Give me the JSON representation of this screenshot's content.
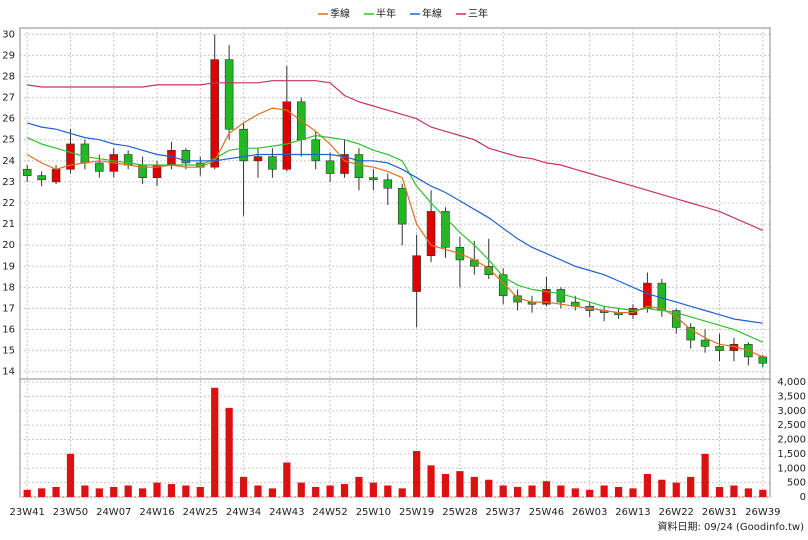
{
  "chart_data": {
    "type": "candlestick",
    "categories": [
      "23W41",
      null,
      null,
      "23W50",
      null,
      null,
      "24W07",
      null,
      null,
      "24W16",
      null,
      null,
      "24W25",
      null,
      null,
      "24W34",
      null,
      null,
      "24W43",
      null,
      null,
      "24W52",
      null,
      null,
      "25W10",
      null,
      null,
      "25W19",
      null,
      null,
      "25W28",
      null,
      null,
      "25W37",
      null,
      null,
      "25W46",
      null,
      null,
      "26W03",
      null,
      null,
      "26W13",
      null,
      null,
      "26W22",
      null,
      null,
      "26W31",
      null,
      null,
      "26W39"
    ],
    "candles": [
      [
        23.6,
        23.8,
        23.0,
        23.3
      ],
      [
        23.3,
        23.5,
        22.8,
        23.1
      ],
      [
        23.0,
        23.8,
        22.9,
        23.6
      ],
      [
        23.6,
        25.5,
        23.4,
        24.8
      ],
      [
        24.8,
        25.0,
        23.6,
        23.9
      ],
      [
        23.9,
        24.3,
        23.2,
        23.5
      ],
      [
        23.5,
        24.6,
        23.2,
        24.3
      ],
      [
        24.3,
        24.5,
        23.6,
        23.8
      ],
      [
        23.8,
        24.2,
        22.9,
        23.2
      ],
      [
        23.2,
        24.0,
        22.8,
        23.8
      ],
      [
        23.8,
        24.9,
        23.6,
        24.5
      ],
      [
        24.5,
        24.6,
        23.6,
        23.9
      ],
      [
        23.9,
        24.2,
        23.3,
        23.7
      ],
      [
        23.7,
        30.0,
        23.6,
        28.8
      ],
      [
        28.8,
        29.5,
        25.0,
        25.5
      ],
      [
        25.5,
        25.8,
        21.4,
        24.0
      ],
      [
        24.0,
        24.6,
        23.2,
        24.2
      ],
      [
        24.2,
        24.6,
        23.2,
        23.6
      ],
      [
        23.6,
        28.5,
        23.5,
        26.8
      ],
      [
        26.8,
        27.0,
        24.2,
        25.0
      ],
      [
        25.0,
        25.4,
        23.6,
        24.0
      ],
      [
        24.0,
        24.4,
        23.0,
        23.4
      ],
      [
        23.4,
        25.0,
        23.2,
        24.3
      ],
      [
        24.3,
        24.6,
        22.6,
        23.2
      ],
      [
        23.2,
        23.6,
        22.6,
        23.1
      ],
      [
        23.1,
        23.4,
        21.9,
        22.7
      ],
      [
        22.7,
        22.9,
        20.0,
        21.0
      ],
      [
        17.8,
        20.5,
        16.1,
        19.5
      ],
      [
        19.5,
        22.6,
        19.2,
        21.6
      ],
      [
        21.6,
        21.8,
        19.4,
        19.9
      ],
      [
        19.9,
        20.4,
        18.0,
        19.3
      ],
      [
        19.3,
        20.2,
        18.6,
        19.0
      ],
      [
        19.0,
        20.3,
        18.4,
        18.6
      ],
      [
        18.6,
        18.9,
        17.2,
        17.6
      ],
      [
        17.6,
        17.9,
        16.9,
        17.3
      ],
      [
        17.3,
        17.6,
        16.8,
        17.2
      ],
      [
        17.2,
        18.5,
        17.1,
        17.9
      ],
      [
        17.9,
        18.0,
        17.0,
        17.3
      ],
      [
        17.3,
        17.6,
        16.9,
        17.1
      ],
      [
        17.1,
        17.3,
        16.6,
        16.9
      ],
      [
        16.9,
        17.1,
        16.4,
        16.8
      ],
      [
        16.8,
        17.0,
        16.5,
        16.7
      ],
      [
        16.7,
        17.2,
        16.5,
        17.0
      ],
      [
        17.0,
        18.7,
        16.8,
        18.2
      ],
      [
        18.2,
        18.4,
        16.6,
        16.9
      ],
      [
        16.9,
        17.0,
        15.8,
        16.1
      ],
      [
        16.1,
        16.3,
        15.1,
        15.5
      ],
      [
        15.5,
        16.0,
        14.9,
        15.2
      ],
      [
        15.2,
        15.8,
        14.5,
        15.0
      ],
      [
        15.0,
        15.6,
        14.5,
        15.3
      ],
      [
        15.3,
        15.4,
        14.3,
        14.7
      ],
      [
        14.7,
        14.8,
        14.2,
        14.4
      ]
    ],
    "up_color": "#e00000",
    "down_color": "#22b822",
    "series": [
      {
        "name": "季線",
        "color": "#e07020",
        "values": [
          24.3,
          23.9,
          23.6,
          23.8,
          23.9,
          24.0,
          23.9,
          23.8,
          23.7,
          23.7,
          23.8,
          23.7,
          23.7,
          24.0,
          25.3,
          25.8,
          26.2,
          26.5,
          26.4,
          25.9,
          25.4,
          24.8,
          24.0,
          23.8,
          23.7,
          23.5,
          23.2,
          21.0,
          20.0,
          19.8,
          19.6,
          19.3,
          18.9,
          18.2,
          17.5,
          17.3,
          17.3,
          17.2,
          17.1,
          17.0,
          16.9,
          16.8,
          16.8,
          17.1,
          17.0,
          16.6,
          16.0,
          15.6,
          15.3,
          15.2,
          15.0,
          14.7
        ]
      },
      {
        "name": "半年",
        "color": "#30c030",
        "values": [
          25.1,
          24.8,
          24.6,
          24.4,
          24.2,
          24.1,
          24.0,
          23.9,
          23.8,
          23.8,
          23.8,
          23.8,
          23.8,
          24.1,
          24.5,
          24.6,
          24.6,
          24.7,
          24.8,
          25.0,
          25.2,
          25.1,
          25.0,
          24.8,
          24.5,
          24.3,
          24.0,
          22.8,
          22.0,
          21.3,
          20.6,
          20.0,
          19.3,
          18.5,
          18.1,
          17.9,
          17.8,
          17.7,
          17.5,
          17.3,
          17.1,
          17.0,
          16.9,
          17.0,
          16.9,
          16.8,
          16.6,
          16.4,
          16.2,
          16.0,
          15.7,
          15.4
        ]
      },
      {
        "name": "年線",
        "color": "#2060d0",
        "values": [
          25.8,
          25.6,
          25.5,
          25.3,
          25.1,
          25.0,
          24.8,
          24.7,
          24.5,
          24.3,
          24.2,
          24.0,
          24.0,
          24.0,
          24.1,
          24.2,
          24.3,
          24.3,
          24.3,
          24.3,
          24.3,
          24.3,
          24.2,
          24.0,
          24.0,
          23.9,
          23.6,
          23.2,
          22.8,
          22.5,
          22.1,
          21.7,
          21.3,
          20.8,
          20.3,
          19.9,
          19.6,
          19.3,
          19.0,
          18.8,
          18.6,
          18.3,
          18.0,
          17.7,
          17.5,
          17.3,
          17.1,
          16.9,
          16.7,
          16.5,
          16.4,
          16.3
        ]
      },
      {
        "name": "三年",
        "color": "#c8306a",
        "values": [
          27.6,
          27.5,
          27.5,
          27.5,
          27.5,
          27.5,
          27.5,
          27.5,
          27.5,
          27.6,
          27.6,
          27.6,
          27.6,
          27.7,
          27.7,
          27.7,
          27.7,
          27.8,
          27.8,
          27.8,
          27.8,
          27.7,
          27.1,
          26.8,
          26.6,
          26.4,
          26.2,
          26.0,
          25.6,
          25.4,
          25.2,
          25.0,
          24.6,
          24.4,
          24.2,
          24.1,
          23.9,
          23.8,
          23.6,
          23.4,
          23.2,
          23.0,
          22.8,
          22.6,
          22.4,
          22.2,
          22.0,
          21.8,
          21.6,
          21.3,
          21.0,
          20.7
        ]
      }
    ],
    "ylim": [
      13.7,
      30.3
    ],
    "yticks": [
      14,
      15,
      16,
      17,
      18,
      19,
      20,
      21,
      22,
      23,
      24,
      25,
      26,
      27,
      28,
      29,
      30
    ],
    "volume": {
      "color": "#dd1111",
      "values": [
        250,
        300,
        350,
        1500,
        400,
        300,
        350,
        400,
        300,
        500,
        450,
        400,
        350,
        3800,
        3100,
        700,
        400,
        300,
        1200,
        500,
        350,
        400,
        450,
        700,
        500,
        400,
        300,
        1600,
        1100,
        800,
        900,
        700,
        600,
        400,
        350,
        400,
        550,
        400,
        300,
        250,
        400,
        350,
        300,
        800,
        600,
        500,
        700,
        1500,
        350,
        400,
        300,
        250
      ],
      "ylim": [
        0,
        4070
      ],
      "yticks": [
        0,
        {
          "value": 500,
          "label": "500"
        },
        {
          "value": 1000,
          "label": "1,000"
        },
        {
          "value": 1500,
          "label": "1,500"
        },
        {
          "value": 2000,
          "label": "2,000"
        },
        {
          "value": 2500,
          "label": "2,500"
        },
        {
          "value": 3000,
          "label": "3,000"
        },
        {
          "value": 3500,
          "label": "3,500"
        },
        {
          "value": 4000,
          "label": "4,000"
        }
      ]
    },
    "grid": true,
    "source": "資料日期: 09/24  (Goodinfo.tw)"
  }
}
